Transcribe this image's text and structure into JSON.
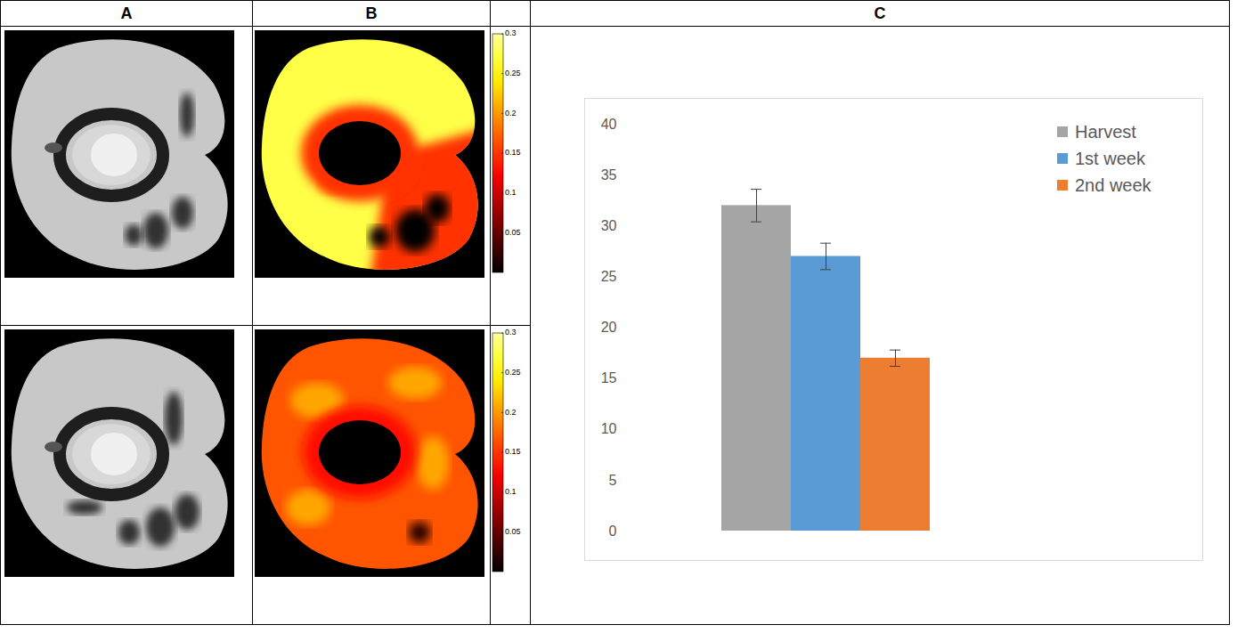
{
  "table": {
    "headers": [
      "A",
      "B",
      "C"
    ]
  },
  "colorbars": [
    {
      "range": [
        0,
        0.3
      ],
      "ticks": [
        0.05,
        0.1,
        0.15,
        0.2,
        0.25,
        0.3
      ]
    },
    {
      "range": [
        0,
        0.3
      ],
      "ticks": [
        0.05,
        0.1,
        0.15,
        0.2,
        0.25,
        0.3
      ]
    }
  ],
  "chart_data": {
    "type": "bar",
    "categories": [
      null
    ],
    "series": [
      {
        "name": "Harvest",
        "color": "#a5a5a5",
        "values": [
          32
        ],
        "errors": [
          1.6
        ]
      },
      {
        "name": "1st week",
        "color": "#5b9bd5",
        "values": [
          27
        ],
        "errors": [
          1.3
        ]
      },
      {
        "name": "2nd week",
        "color": "#ed7d31",
        "values": [
          17
        ],
        "errors": [
          0.8
        ]
      }
    ],
    "ylim": [
      0,
      40
    ],
    "yticks": [
      0,
      5,
      10,
      15,
      20,
      25,
      30,
      35,
      40
    ],
    "grid": false,
    "legend": "top-right",
    "tick_labels": "y"
  }
}
